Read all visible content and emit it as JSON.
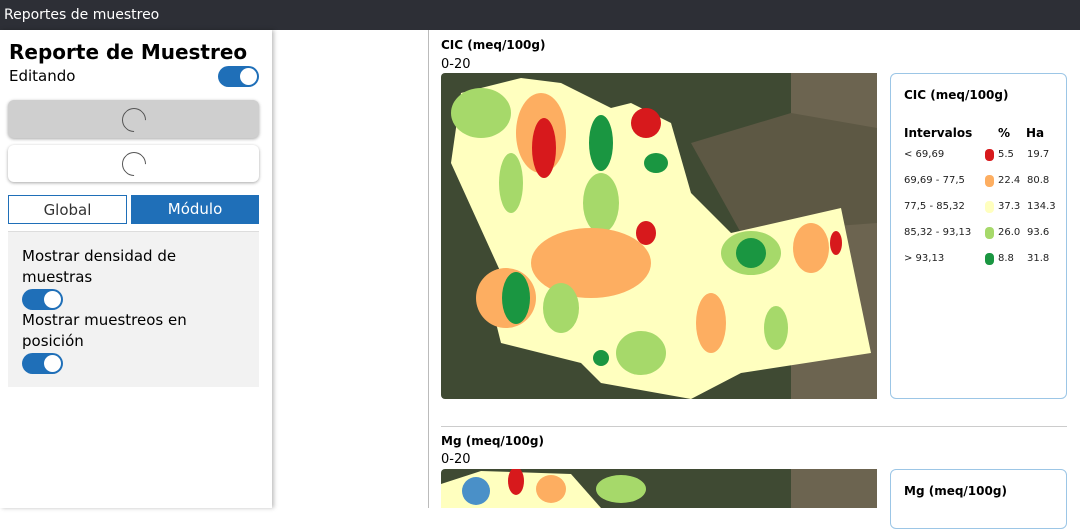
{
  "top_bar": {
    "title": "Reportes de muestreo"
  },
  "sidebar": {
    "title": "Reporte de Muestreo",
    "editing_label": "Editando",
    "tabs": [
      "Global",
      "Módulo"
    ],
    "options": [
      "Mostrar densidad de muestras",
      "Mostrar muestreos en posición"
    ]
  },
  "reports": [
    {
      "title": "CIC (meq/100g)",
      "depth": "0-20",
      "legend": {
        "title": "CIC (meq/100g)",
        "columns": [
          "Intervalos",
          "%",
          "Ha"
        ],
        "rows": [
          {
            "interval": "< 69,69",
            "color": "#d7191c",
            "percent": "5.5",
            "ha": "19.7"
          },
          {
            "interval": "69,69 - 77,5",
            "color": "#fdae61",
            "percent": "22.4",
            "ha": "80.8"
          },
          {
            "interval": "77,5 - 85,32",
            "color": "#ffffbf",
            "percent": "37.3",
            "ha": "134.3"
          },
          {
            "interval": "85,32 - 93,13",
            "color": "#a6d96a",
            "percent": "26.0",
            "ha": "93.6"
          },
          {
            "interval": "> 93,13",
            "color": "#1a9641",
            "percent": "8.8",
            "ha": "31.8"
          }
        ]
      }
    },
    {
      "title": "Mg (meq/100g)",
      "depth": "0-20",
      "legend": {
        "title": "Mg (meq/100g)"
      }
    }
  ]
}
